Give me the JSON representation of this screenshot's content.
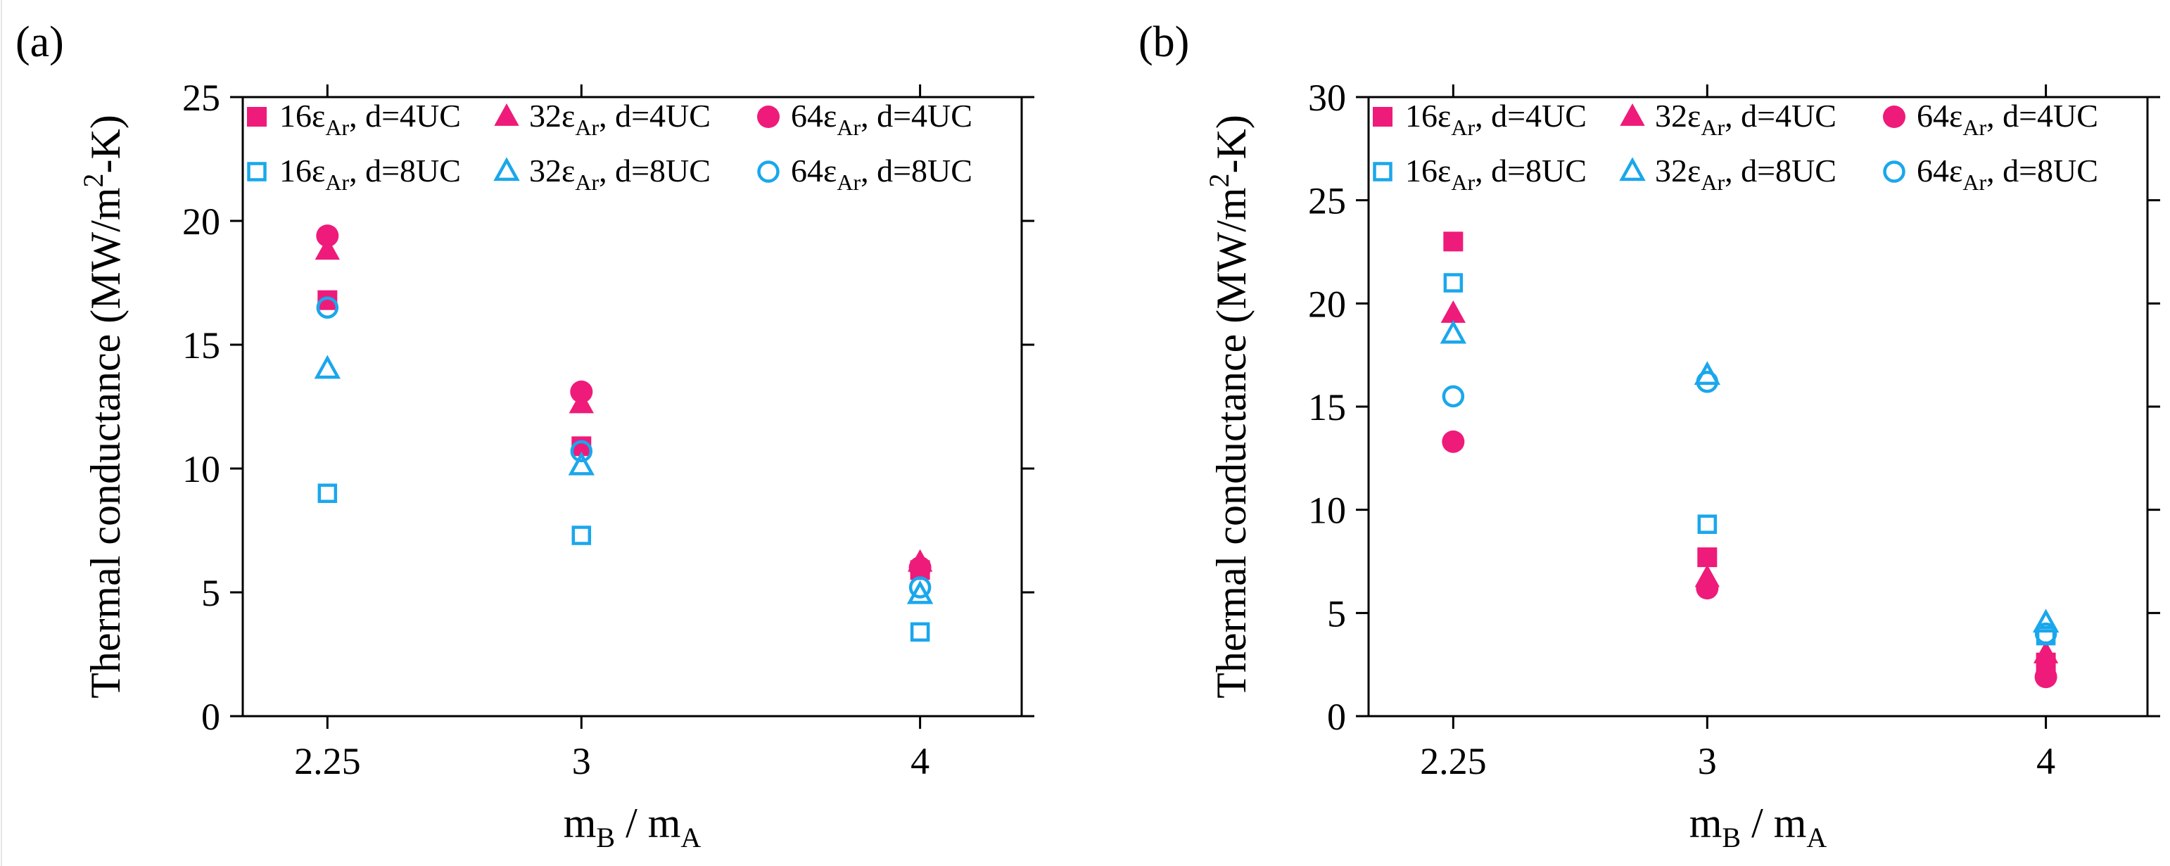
{
  "colors": {
    "filled": "#ee1b7a",
    "open": "#1aa7ec",
    "axis": "#000000"
  },
  "chart_data": [
    {
      "type": "scatter",
      "panel_label": "(a)",
      "xlabel": {
        "main": "m",
        "sub1": "B",
        "mid": " / m",
        "sub2": "A"
      },
      "ylabel": {
        "pre": "Thermal conductance (MW/m",
        "sup": "2",
        "post": "-K)"
      },
      "categories": [
        "2.25",
        "3",
        "4"
      ],
      "x": [
        2.25,
        3,
        4
      ],
      "xlim": [
        2.0,
        4.3
      ],
      "ylim": [
        0,
        25
      ],
      "yticks": [
        "0",
        "5",
        "10",
        "15",
        "20",
        "25"
      ],
      "ytick_values": [
        0,
        5,
        10,
        15,
        20,
        25
      ],
      "legend_position": "top",
      "series": [
        {
          "name": "16εAr, d=4UC",
          "label": {
            "pre": "16ε",
            "sub": "Ar",
            "post": ", d=4UC"
          },
          "marker": "square",
          "fill": "filled",
          "values": [
            16.8,
            10.9,
            5.9
          ]
        },
        {
          "name": "32εAr, d=4UC",
          "label": {
            "pre": "32ε",
            "sub": "Ar",
            "post": ", d=4UC"
          },
          "marker": "triangle",
          "fill": "filled",
          "values": [
            18.8,
            12.6,
            6.2
          ]
        },
        {
          "name": "64εAr, d=4UC",
          "label": {
            "pre": "64ε",
            "sub": "Ar",
            "post": ", d=4UC"
          },
          "marker": "circle",
          "fill": "filled",
          "values": [
            19.4,
            13.1,
            6.0
          ]
        },
        {
          "name": "16εAr, d=8UC",
          "label": {
            "pre": "16ε",
            "sub": "Ar",
            "post": ", d=8UC"
          },
          "marker": "square",
          "fill": "open",
          "values": [
            9.0,
            7.3,
            3.4
          ]
        },
        {
          "name": "32εAr, d=8UC",
          "label": {
            "pre": "32ε",
            "sub": "Ar",
            "post": ", d=8UC"
          },
          "marker": "triangle",
          "fill": "open",
          "values": [
            14.0,
            10.1,
            4.9
          ]
        },
        {
          "name": "64εAr, d=8UC",
          "label": {
            "pre": "64ε",
            "sub": "Ar",
            "post": ", d=8UC"
          },
          "marker": "circle",
          "fill": "open",
          "values": [
            16.5,
            10.7,
            5.2
          ]
        }
      ]
    },
    {
      "type": "scatter",
      "panel_label": "(b)",
      "xlabel": {
        "main": "m",
        "sub1": "B",
        "mid": " / m",
        "sub2": "A"
      },
      "ylabel": {
        "pre": "Thermal conductance (MW/m",
        "sup": "2",
        "post": "-K)"
      },
      "categories": [
        "2.25",
        "3",
        "4"
      ],
      "x": [
        2.25,
        3,
        4
      ],
      "xlim": [
        2.0,
        4.3
      ],
      "ylim": [
        0,
        30
      ],
      "yticks": [
        "0",
        "5",
        "10",
        "15",
        "20",
        "25",
        "30"
      ],
      "ytick_values": [
        0,
        5,
        10,
        15,
        20,
        25,
        30
      ],
      "legend_position": "top",
      "series": [
        {
          "name": "16εAr, d=4UC",
          "label": {
            "pre": "16ε",
            "sub": "Ar",
            "post": ", d=4UC"
          },
          "marker": "square",
          "fill": "filled",
          "values": [
            23.0,
            7.7,
            2.6
          ]
        },
        {
          "name": "32εAr, d=4UC",
          "label": {
            "pre": "32ε",
            "sub": "Ar",
            "post": ", d=4UC"
          },
          "marker": "triangle",
          "fill": "filled",
          "values": [
            19.5,
            6.7,
            3.0
          ]
        },
        {
          "name": "64εAr, d=4UC",
          "label": {
            "pre": "64ε",
            "sub": "Ar",
            "post": ", d=4UC"
          },
          "marker": "circle",
          "fill": "filled",
          "values": [
            13.3,
            6.2,
            1.9
          ]
        },
        {
          "name": "16εAr, d=8UC",
          "label": {
            "pre": "16ε",
            "sub": "Ar",
            "post": ", d=8UC"
          },
          "marker": "square",
          "fill": "open",
          "values": [
            21.0,
            9.3,
            3.9
          ]
        },
        {
          "name": "32εAr, d=8UC",
          "label": {
            "pre": "32ε",
            "sub": "Ar",
            "post": ", d=8UC"
          },
          "marker": "triangle",
          "fill": "open",
          "values": [
            18.5,
            16.5,
            4.5
          ]
        },
        {
          "name": "64εAr, d=8UC",
          "label": {
            "pre": "64ε",
            "sub": "Ar",
            "post": ", d=8UC"
          },
          "marker": "circle",
          "fill": "open",
          "values": [
            15.5,
            16.2,
            4.0
          ]
        }
      ]
    }
  ]
}
